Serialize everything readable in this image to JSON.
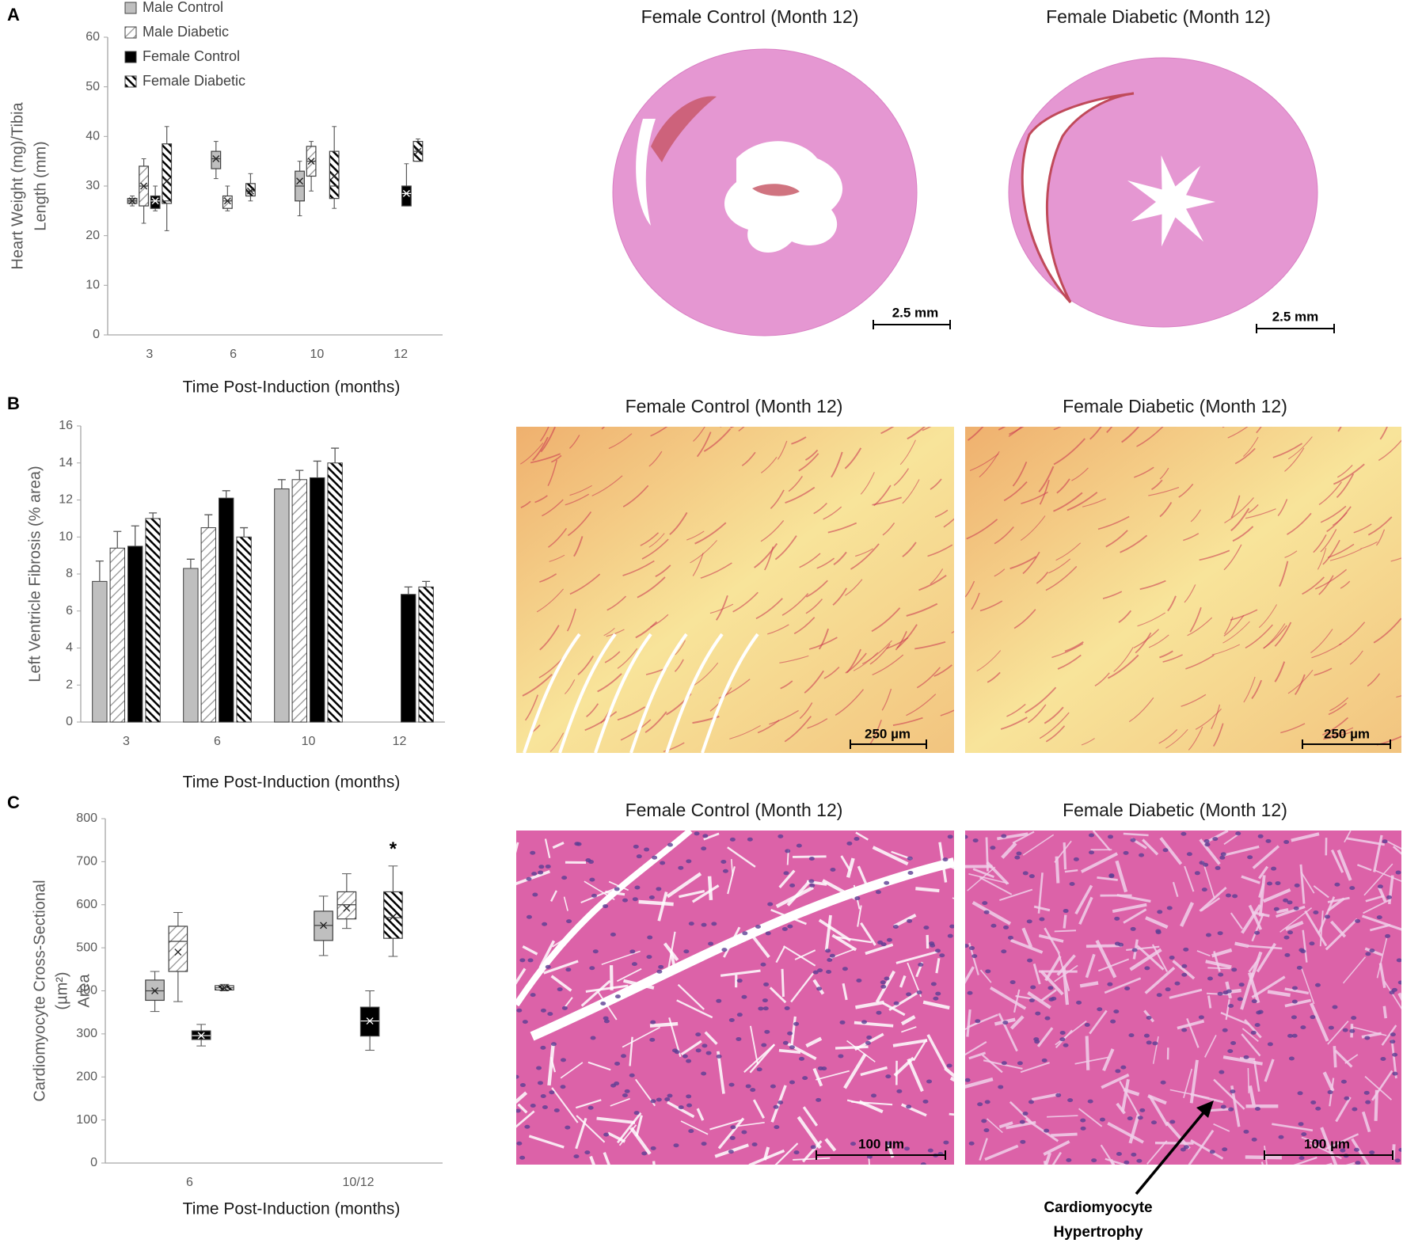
{
  "panel_labels": [
    "A",
    "B",
    "C"
  ],
  "chart_data": [
    {
      "type": "box",
      "ylabel": [
        "Heart Weight (mg)/Tibia",
        "Length (mm)"
      ],
      "xlabel": "Time Post-Induction (months)",
      "categories": [
        "3",
        "6",
        "10",
        "12"
      ],
      "ylim": [
        0,
        60
      ],
      "yticks": [
        0,
        10,
        20,
        30,
        40,
        50,
        60
      ],
      "legend": "top-left",
      "series": [
        {
          "name": "Male Control",
          "color": "#bfbfbf",
          "hatch": "none",
          "boxes": [
            {
              "min": 26,
              "q1": 26.5,
              "median": 27,
              "q3": 27.5,
              "max": 28,
              "mean": 27
            },
            {
              "min": 31.5,
              "q1": 33.5,
              "median": 35.5,
              "q3": 37,
              "max": 39,
              "mean": 35.5
            },
            {
              "min": 24,
              "q1": 27,
              "median": 30,
              "q3": 33,
              "max": 35,
              "mean": 31
            },
            null
          ]
        },
        {
          "name": "Male Diabetic",
          "color": "#8c8c8c",
          "hatch": "forward-light",
          "boxes": [
            {
              "min": 22.5,
              "q1": 26,
              "median": 30,
              "q3": 34,
              "max": 35.5,
              "mean": 30
            },
            {
              "min": 25,
              "q1": 25.5,
              "median": 27,
              "q3": 28,
              "max": 30,
              "mean": 27
            },
            {
              "min": 29,
              "q1": 32,
              "median": 35,
              "q3": 38,
              "max": 39,
              "mean": 35
            },
            null
          ]
        },
        {
          "name": "Female Control",
          "color": "#000000",
          "hatch": "none",
          "boxes": [
            {
              "min": 25,
              "q1": 25.5,
              "median": 27,
              "q3": 28,
              "max": 30,
              "mean": 27
            },
            null,
            null,
            {
              "min": 26,
              "q1": 26,
              "median": 28.5,
              "q3": 30,
              "max": 34.5,
              "mean": 28.5
            }
          ]
        },
        {
          "name": "Female Diabetic",
          "color": "#000000",
          "hatch": "back-dense",
          "boxes": [
            {
              "min": 21,
              "q1": 26.5,
              "median": 27,
              "q3": 38.5,
              "max": 42,
              "mean": 31
            },
            {
              "min": 27,
              "q1": 28,
              "median": 29,
              "q3": 30.5,
              "max": 32.5,
              "mean": 29
            },
            {
              "min": 25.5,
              "q1": 27.5,
              "median": 30,
              "q3": 37,
              "max": 42,
              "mean": 32
            },
            {
              "min": 35,
              "q1": 35,
              "median": 37,
              "q3": 39,
              "max": 39.5,
              "mean": 37
            }
          ]
        }
      ]
    },
    {
      "type": "bar",
      "ylabel": [
        "Left Ventricle Fibrosis (% area)"
      ],
      "xlabel": "Time Post-Induction (months)",
      "categories": [
        "3",
        "6",
        "10",
        "12"
      ],
      "ylim": [
        0,
        16
      ],
      "yticks": [
        0,
        2,
        4,
        6,
        8,
        10,
        12,
        14,
        16
      ],
      "series": [
        {
          "color": "#bfbfbf",
          "hatch": "none",
          "values": [
            7.6,
            8.3,
            12.6,
            null
          ],
          "errors": [
            1.1,
            0.5,
            0.5,
            null
          ]
        },
        {
          "color": "#8c8c8c",
          "hatch": "forward-light",
          "values": [
            9.4,
            10.5,
            13.1,
            null
          ],
          "errors": [
            0.9,
            0.7,
            0.5,
            null
          ]
        },
        {
          "color": "#000000",
          "hatch": "none",
          "values": [
            9.5,
            12.1,
            13.2,
            6.9
          ],
          "errors": [
            1.1,
            0.4,
            0.9,
            0.4
          ]
        },
        {
          "color": "#000000",
          "hatch": "back-dense",
          "values": [
            11.0,
            10.0,
            14.0,
            7.3
          ],
          "errors": [
            0.3,
            0.5,
            0.8,
            0.3
          ]
        }
      ]
    },
    {
      "type": "box",
      "ylabel": [
        "Cardiomyocyte Cross-Sectional",
        "(µm²)",
        "Area"
      ],
      "xlabel": "Time Post-Induction (months)",
      "categories": [
        "6",
        "10/12"
      ],
      "ylim": [
        0,
        800
      ],
      "yticks": [
        0,
        100,
        200,
        300,
        400,
        500,
        600,
        700,
        800
      ],
      "annotations": [
        "*"
      ],
      "series": [
        {
          "color": "#bfbfbf",
          "hatch": "none",
          "boxes": [
            {
              "min": 352,
              "q1": 378,
              "median": 400,
              "q3": 425,
              "max": 445,
              "mean": 400
            },
            {
              "min": 482,
              "q1": 517,
              "median": 552,
              "q3": 585,
              "max": 620,
              "mean": 552
            }
          ]
        },
        {
          "color": "#8c8c8c",
          "hatch": "forward-light",
          "boxes": [
            {
              "min": 375,
              "q1": 445,
              "median": 515,
              "q3": 550,
              "max": 582,
              "mean": 490
            },
            {
              "min": 545,
              "q1": 567,
              "median": 600,
              "q3": 630,
              "max": 672,
              "mean": 592
            }
          ]
        },
        {
          "color": "#000000",
          "hatch": "none",
          "boxes": [
            {
              "min": 272,
              "q1": 287,
              "median": 296,
              "q3": 307,
              "max": 322,
              "mean": 296
            },
            {
              "min": 262,
              "q1": 295,
              "median": 330,
              "q3": 362,
              "max": 400,
              "mean": 330
            }
          ]
        },
        {
          "color": "#000000",
          "hatch": "back-dense",
          "boxes": [
            {
              "min": 400,
              "q1": 402,
              "median": 407,
              "q3": 412,
              "max": 415,
              "mean": 407
            },
            {
              "min": 480,
              "q1": 522,
              "median": 570,
              "q3": 630,
              "max": 690,
              "mean": 572
            }
          ]
        }
      ]
    }
  ],
  "images": [
    {
      "title": "Female Control (Month 12)",
      "scale_bar": "2.5 mm"
    },
    {
      "title": "Female Diabetic (Month 12)",
      "scale_bar": "2.5 mm"
    },
    {
      "title": "Female Control (Month 12)",
      "scale_bar": "250 µm"
    },
    {
      "title": "Female Diabetic (Month 12)",
      "scale_bar": "250 µm"
    },
    {
      "title": "Female Control (Month 12)",
      "scale_bar": "100 µm"
    },
    {
      "title": "Female Diabetic (Month 12)",
      "scale_bar": "100 µm"
    }
  ],
  "annotation": [
    "Cardiomyocyte",
    "Hypertrophy"
  ]
}
